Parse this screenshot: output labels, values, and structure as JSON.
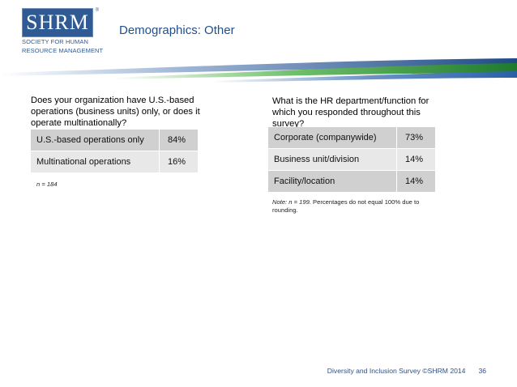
{
  "logo": {
    "letters": "SHRM",
    "reg": "®",
    "line1": "SOCIETY FOR HUMAN",
    "line2": "RESOURCE MANAGEMENT"
  },
  "page_title": "Demographics: Other",
  "left_panel": {
    "question": "Does your organization have U.S.-based operations (business units) only, or does it operate multinationally?",
    "rows": [
      {
        "label": "U.S.-based operations only",
        "value": "84%"
      },
      {
        "label": "Multinational operations",
        "value": "16%"
      }
    ],
    "note": "n = 184"
  },
  "right_panel": {
    "question": "What is the HR department/function for which you responded throughout this survey?",
    "rows": [
      {
        "label": "Corporate (companywide)",
        "value": "73%"
      },
      {
        "label": "Business unit/division",
        "value": "14%"
      },
      {
        "label": "Facility/location",
        "value": "14%"
      }
    ],
    "note_italic": "Note: n = 199.",
    "note_rest": " Percentages do not equal 100% due to rounding."
  },
  "footer": {
    "text": "Diversity and Inclusion Survey ©SHRM 2014",
    "page": "36"
  },
  "colors": {
    "brand_blue": "#2f5a93",
    "title_blue": "#1f4f8c",
    "banner_green": "#2f8a3a",
    "row_dark": "#d0d0d0",
    "row_light": "#e8e8e8"
  }
}
